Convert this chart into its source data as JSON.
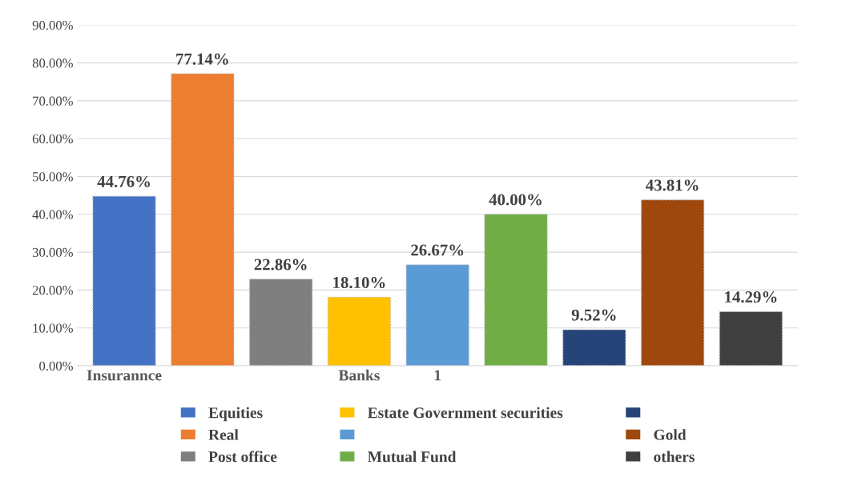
{
  "chart_data": {
    "type": "bar",
    "categories": [
      "Insurannce",
      null,
      null,
      "Banks",
      "1",
      null,
      null,
      null,
      null
    ],
    "series": [
      {
        "name": "Equities",
        "color": "#4472c4",
        "values": [
          44.76,
          null,
          null,
          null,
          null,
          null,
          null,
          null,
          null
        ]
      },
      {
        "name": "Real",
        "color": "#ed7d31",
        "values": [
          null,
          77.14,
          null,
          null,
          null,
          null,
          null,
          null,
          null
        ]
      },
      {
        "name": "Post office",
        "color": "#7f7f7f",
        "values": [
          null,
          null,
          22.86,
          null,
          null,
          null,
          null,
          null,
          null
        ]
      },
      {
        "name": "Estate Government securities",
        "color": "#ffc000",
        "values": [
          null,
          null,
          null,
          18.1,
          null,
          null,
          null,
          null,
          null
        ]
      },
      {
        "color": "#5b9bd5",
        "values": [
          null,
          null,
          null,
          null,
          26.67,
          null,
          null,
          null,
          null
        ]
      },
      {
        "name": "Mutual Fund",
        "color": "#70ad47",
        "values": [
          null,
          null,
          null,
          null,
          null,
          40.0,
          null,
          null,
          null
        ]
      },
      {
        "color": "#264478",
        "values": [
          null,
          null,
          null,
          null,
          null,
          null,
          9.52,
          null,
          null
        ]
      },
      {
        "name": "Gold",
        "color": "#9e480e",
        "values": [
          null,
          null,
          null,
          null,
          null,
          null,
          null,
          43.81,
          null
        ]
      },
      {
        "name": "others",
        "color": "#404040",
        "values": [
          null,
          null,
          null,
          null,
          null,
          null,
          null,
          null,
          14.29
        ]
      }
    ],
    "value_labels": [
      "44.76%",
      "77.14%",
      "22.86%",
      "18.10%",
      "26.67%",
      "40.00%",
      "9.52%",
      "43.81%",
      "14.29%"
    ],
    "ylim": [
      0,
      90
    ],
    "yticks": [
      {
        "value": 0,
        "label": "0.00%"
      },
      {
        "value": 10,
        "label": "10.00%"
      },
      {
        "value": 20,
        "label": "20.00%"
      },
      {
        "value": 30,
        "label": "30.00%"
      },
      {
        "value": 40,
        "label": "40.00%"
      },
      {
        "value": 50,
        "label": "50.00%"
      },
      {
        "value": 60,
        "label": "60.00%"
      },
      {
        "value": 70,
        "label": "70.00%"
      },
      {
        "value": 80,
        "label": "80.00%"
      },
      {
        "value": 90,
        "label": "90.00%"
      }
    ],
    "grid": "y",
    "legend": "bottom"
  }
}
